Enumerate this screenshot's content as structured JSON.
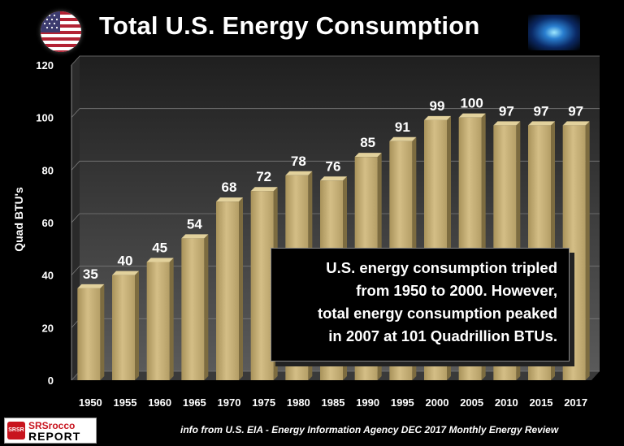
{
  "title": "Total U.S. Energy Consumption",
  "annotation": [
    "U.S. energy consumption tripled",
    "from 1950 to 2000.  However,",
    "total energy consumption peaked",
    "in 2007 at 101 Quadrillion BTUs."
  ],
  "source": "info from U.S. EIA - Energy Information Agency DEC 2017 Monthly Energy Review",
  "logo": {
    "mark": "SRSR",
    "line1": "SRSrocco",
    "line2": "REPORT"
  },
  "icons": {
    "flag": "us-flag-icon",
    "energy": "energy-graphic"
  },
  "colors": {
    "bar": "#c9b278",
    "background": "#000000",
    "text": "#ffffff"
  },
  "chart_data": {
    "type": "bar",
    "title": "Total U.S. Energy Consumption",
    "xlabel": "",
    "ylabel": "Quad BTU's",
    "ylim": [
      0,
      120
    ],
    "yticks": [
      0,
      20,
      40,
      60,
      80,
      100,
      120
    ],
    "grid": true,
    "categories": [
      "1950",
      "1955",
      "1960",
      "1965",
      "1970",
      "1975",
      "1980",
      "1985",
      "1990",
      "1995",
      "2000",
      "2005",
      "2010",
      "2015",
      "2017"
    ],
    "values": [
      35,
      40,
      45,
      54,
      68,
      72,
      78,
      76,
      85,
      91,
      99,
      100,
      97,
      97,
      97
    ],
    "data_labels": [
      "35",
      "40",
      "45",
      "54",
      "68",
      "72",
      "78",
      "76",
      "85",
      "91",
      "99",
      "100",
      "97",
      "97",
      "97"
    ]
  }
}
